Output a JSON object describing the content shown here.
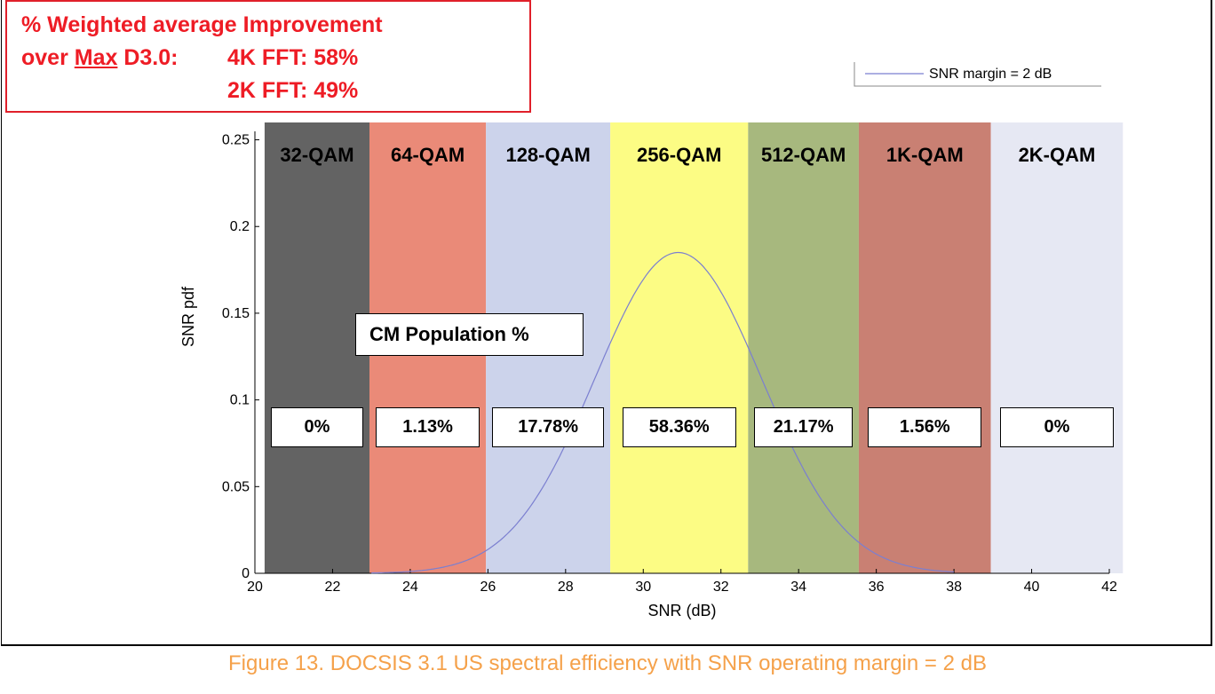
{
  "callout": {
    "line1": "% Weighted average Improvement",
    "line2_pre": "over ",
    "line2_u": "Max",
    "line2_post": " D3.0:",
    "fft4k": "4K FFT:  58%",
    "fft2k": "2K FFT:  49%"
  },
  "caption": "Figure 13. DOCSIS 3.1 US spectral efficiency with SNR operating margin = 2 dB",
  "population_label": "CM Population %",
  "chart_data": {
    "type": "line",
    "title": "",
    "xlabel": "SNR (dB)",
    "ylabel": "SNR pdf",
    "xlim": [
      20,
      42
    ],
    "ylim": [
      0,
      0.26
    ],
    "xticks": [
      "20",
      "22",
      "24",
      "26",
      "28",
      "30",
      "32",
      "34",
      "36",
      "38",
      "40",
      "42"
    ],
    "yticks": [
      "0",
      "0.05",
      "0.1",
      "0.15",
      "0.2",
      "0.25"
    ],
    "legend": {
      "position": "top-right",
      "entries": [
        "SNR margin = 2 dB"
      ]
    },
    "series": [
      {
        "name": "SNR margin = 2 dB",
        "mean": 30.9,
        "std": 2.15,
        "peak": 0.185,
        "color": "#7b7fd0"
      }
    ],
    "bands": [
      {
        "label": "32-QAM",
        "x0": 20.25,
        "x1": 22.95,
        "color": "#636363",
        "percent": "0%"
      },
      {
        "label": "64-QAM",
        "x0": 22.95,
        "x1": 25.95,
        "color": "#ea8a78",
        "percent": "1.13%"
      },
      {
        "label": "128-QAM",
        "x0": 25.95,
        "x1": 29.15,
        "color": "#ccd3eb",
        "percent": "17.78%"
      },
      {
        "label": "256-QAM",
        "x0": 29.15,
        "x1": 32.7,
        "color": "#fcfc84",
        "percent": "58.36%"
      },
      {
        "label": "512-QAM",
        "x0": 32.7,
        "x1": 35.55,
        "color": "#a7b87e",
        "percent": "21.17%"
      },
      {
        "label": "1K-QAM",
        "x0": 35.55,
        "x1": 38.95,
        "color": "#c98073",
        "percent": "1.56%"
      },
      {
        "label": "2K-QAM",
        "x0": 38.95,
        "x1": 42.35,
        "color": "#e6e8f3",
        "percent": "0%"
      }
    ]
  }
}
